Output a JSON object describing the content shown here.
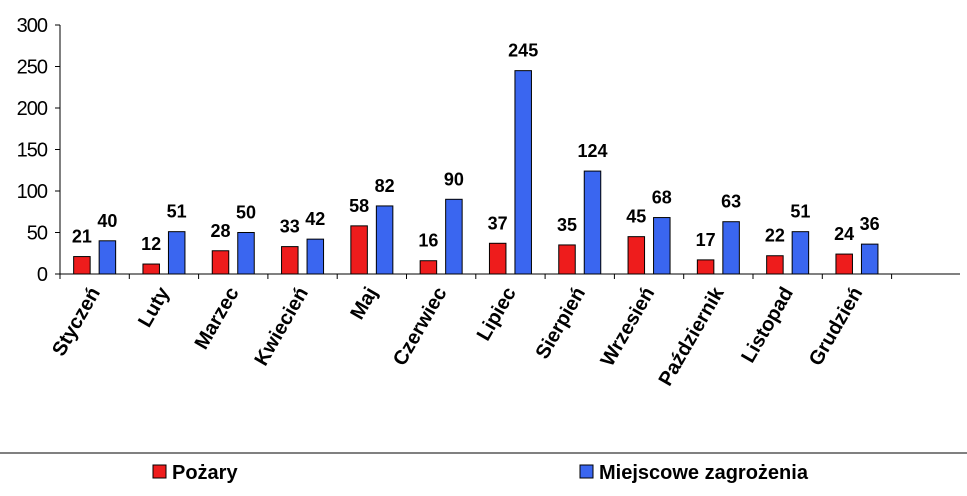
{
  "chart_data": {
    "type": "bar",
    "title": "",
    "xlabel": "",
    "ylabel": "",
    "ylim": [
      0,
      300
    ],
    "yticks": [
      0,
      50,
      100,
      150,
      200,
      250,
      300
    ],
    "grid": false,
    "legend_position": "bottom",
    "categories": [
      "Styczeń",
      "Luty",
      "Marzec",
      "Kwiecień",
      "Maj",
      "Czerwiec",
      "Lipiec",
      "Sierpień",
      "Wrzesień",
      "Październik",
      "Listopad",
      "Grudzień"
    ],
    "series": [
      {
        "name": "Pożary",
        "color": "#ee1c1c",
        "values": [
          21,
          12,
          28,
          33,
          58,
          16,
          37,
          35,
          45,
          17,
          22,
          24
        ]
      },
      {
        "name": "Miejscowe zagrożenia",
        "color": "#3a66f0",
        "values": [
          40,
          51,
          50,
          42,
          82,
          90,
          245,
          124,
          68,
          63,
          51,
          36
        ]
      }
    ]
  }
}
